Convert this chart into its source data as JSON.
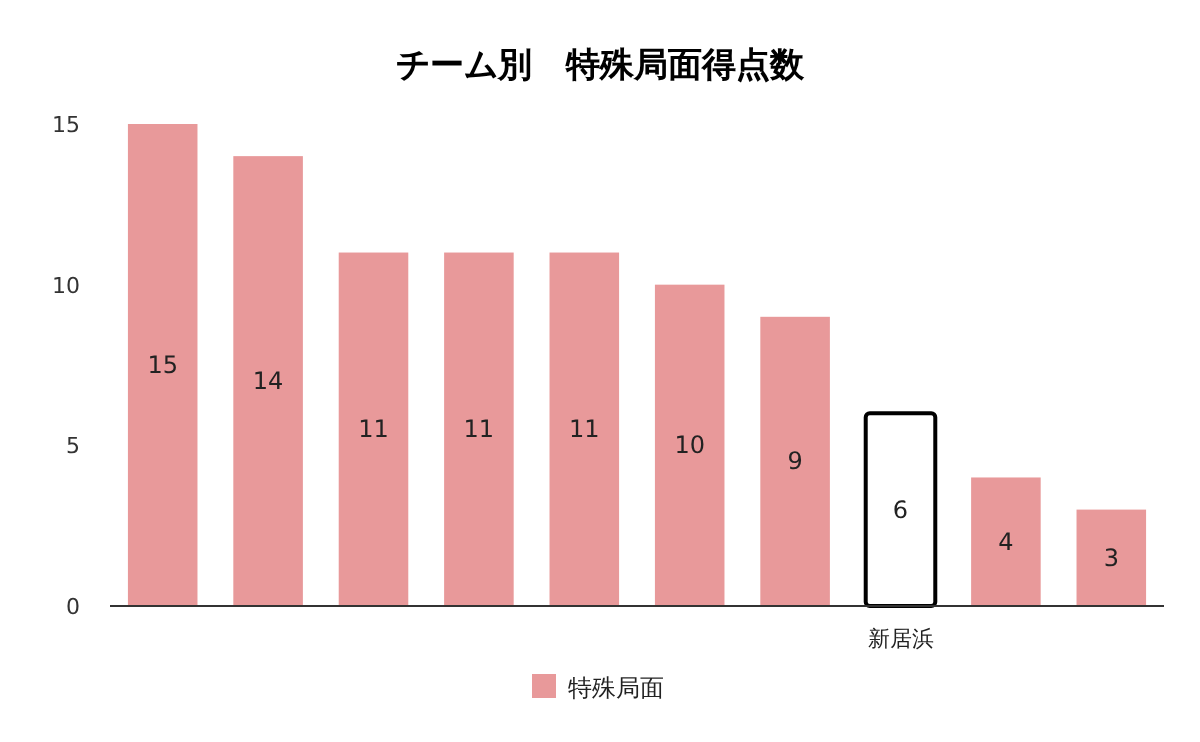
{
  "chart_data": {
    "type": "bar",
    "title": "チーム別　特殊局面得点数",
    "categories": [
      null,
      null,
      null,
      null,
      null,
      null,
      null,
      "新居浜",
      null,
      null
    ],
    "series": [
      {
        "name": "特殊局面",
        "color": "#e8999a",
        "colors": [
          "#e8999a",
          "#e8999a",
          "#e8999a",
          "#e8999a",
          "#e8999a",
          "#e8999a",
          "#e8999a",
          "#ffffff",
          "#e8999a",
          "#e8999a"
        ],
        "values": [
          15,
          14,
          11,
          11,
          11,
          10,
          9,
          6,
          4,
          3
        ]
      }
    ],
    "ylim": [
      0,
      15
    ],
    "yticks": [
      0,
      5,
      10,
      15
    ],
    "data_labels": true,
    "legend": "bottom"
  }
}
